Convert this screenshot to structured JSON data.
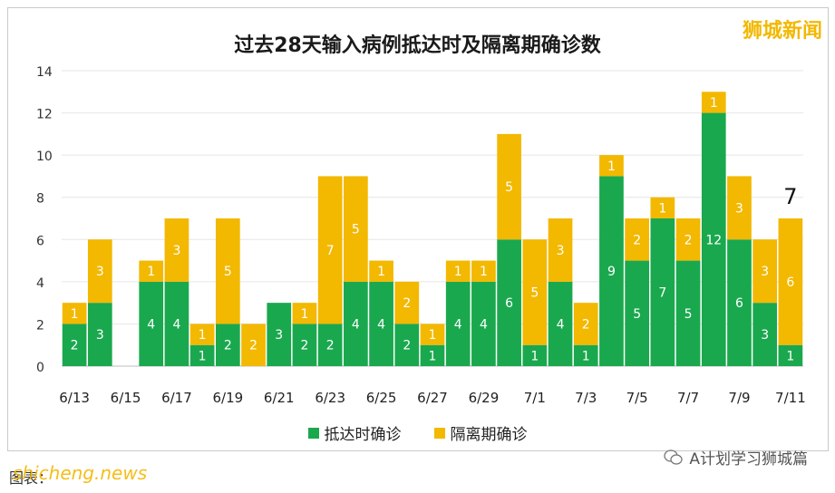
{
  "brand": "狮城新闻",
  "footer": {
    "left": "图表：",
    "watermark": "shicheng.news",
    "right": "A计划学习狮城篇"
  },
  "chart_data": {
    "type": "bar",
    "stacked": true,
    "title": "过去28天输入病例抵达时及隔离期确诊数",
    "categories": [
      "6/13",
      "6/14",
      "6/15",
      "6/16",
      "6/17",
      "6/18",
      "6/19",
      "6/20",
      "6/21",
      "6/22",
      "6/23",
      "6/24",
      "6/25",
      "6/26",
      "6/27",
      "6/28",
      "6/29",
      "6/30",
      "7/1",
      "7/2",
      "7/3",
      "7/4",
      "7/5",
      "7/6",
      "7/7",
      "7/8",
      "7/9",
      "7/10",
      "7/11"
    ],
    "tick_labels": [
      "6/13",
      "6/15",
      "6/17",
      "6/19",
      "6/21",
      "6/23",
      "6/25",
      "6/27",
      "6/29",
      "7/1",
      "7/3",
      "7/5",
      "7/7",
      "7/9",
      "7/11"
    ],
    "series": [
      {
        "name": "抵达时确诊",
        "color": "#1aa84e",
        "values": [
          2,
          3,
          0,
          4,
          4,
          1,
          2,
          0,
          3,
          2,
          2,
          4,
          4,
          2,
          1,
          4,
          4,
          6,
          1,
          4,
          1,
          9,
          5,
          7,
          5,
          12,
          6,
          3,
          1
        ]
      },
      {
        "name": "隔离期确诊",
        "color": "#f3b800",
        "values": [
          1,
          3,
          0,
          1,
          3,
          1,
          5,
          2,
          0,
          1,
          7,
          5,
          1,
          2,
          1,
          1,
          1,
          5,
          5,
          3,
          2,
          1,
          2,
          1,
          2,
          1,
          3,
          3,
          6
        ]
      }
    ],
    "bar_labels_green": [
      "2",
      "3",
      "",
      "4",
      "4",
      "1",
      "2",
      "",
      "3",
      "2",
      "2",
      "4",
      "4",
      "2",
      "1",
      "4",
      "4",
      "6",
      "1",
      "4",
      "1",
      "9",
      "5",
      "7",
      "5",
      "12",
      "6",
      "3",
      "1"
    ],
    "bar_labels_yellow": [
      "1",
      "3",
      "",
      "1",
      "3",
      "1",
      "5",
      "2",
      "",
      "1",
      "7",
      "5",
      "1",
      "2",
      "1",
      "1",
      "1",
      "5",
      "5",
      "3",
      "2",
      "1",
      "2",
      "1",
      "2",
      "1",
      "3",
      "3",
      "6"
    ],
    "ylim": [
      0,
      14
    ],
    "yticks": [
      0,
      2,
      4,
      6,
      8,
      10,
      12,
      14
    ],
    "grid": true,
    "legend_position": "bottom",
    "annotation": "7"
  }
}
